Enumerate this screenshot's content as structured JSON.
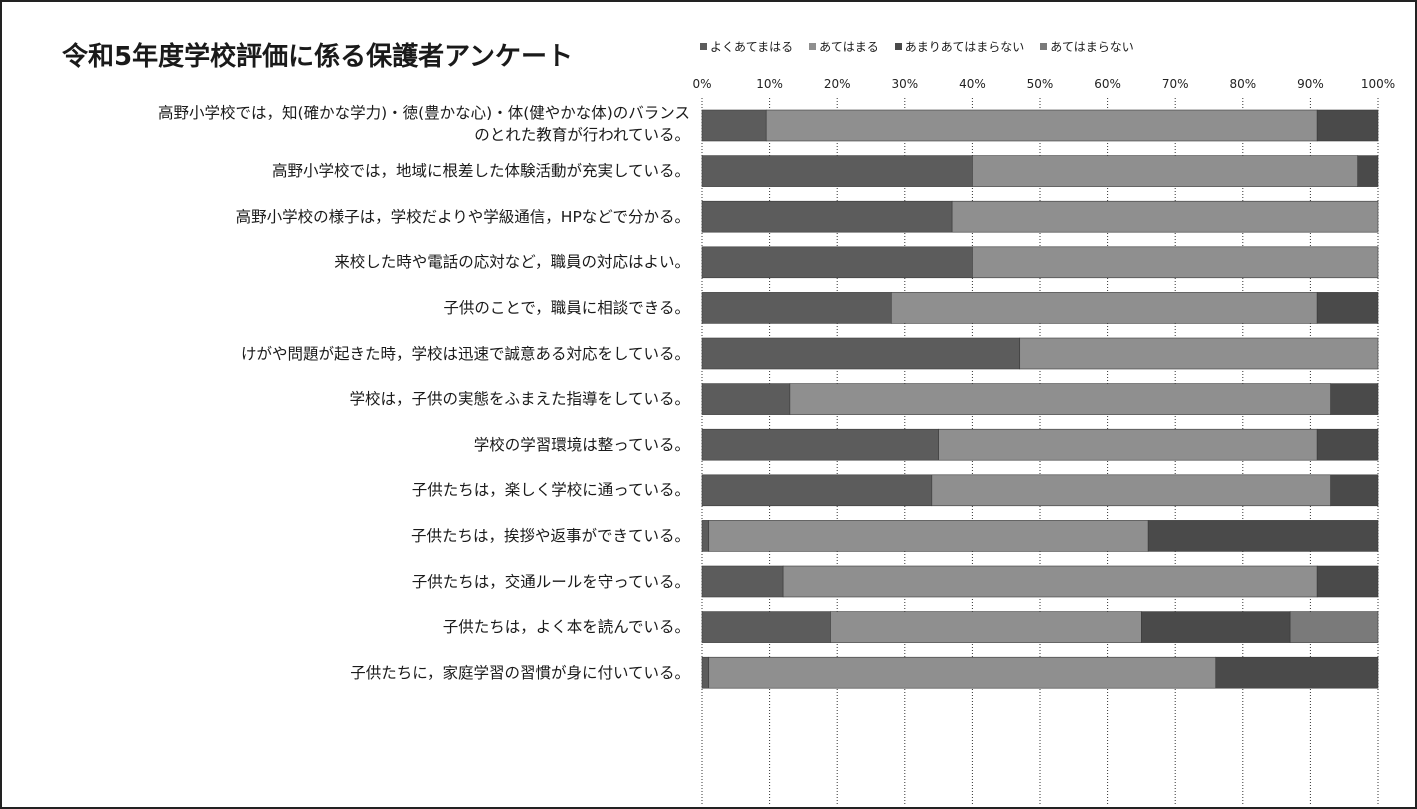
{
  "chart_data": {
    "type": "bar",
    "orientation": "horizontal",
    "stacked": true,
    "title": "令和5年度学校評価に係る保護者アンケート",
    "categories": [
      "高野小学校では，知(確かな学力)・徳(豊かな心)・体(健やかな体)のバランス\nのとれた教育が行われている。",
      "高野小学校では，地域に根差した体験活動が充実している。",
      "高野小学校の様子は，学校だよりや学級通信，HPなどで分かる。",
      "来校した時や電話の応対など，職員の対応はよい。",
      "子供のことで，職員に相談できる。",
      "けがや問題が起きた時，学校は迅速で誠意ある対応をしている。",
      "学校は，子供の実態をふまえた指導をしている。",
      "学校の学習環境は整っている。",
      "子供たちは，楽しく学校に通っている。",
      "子供たちは，挨拶や返事ができている。",
      "子供たちは，交通ルールを守っている。",
      "子供たちは，よく本を読んでいる。",
      "子供たちに，家庭学習の習慣が身に付いている。"
    ],
    "series": [
      {
        "name": "よくあてまはる",
        "color": "#5c5c5c",
        "values": [
          9.5,
          40,
          37,
          40,
          28,
          47,
          13,
          35,
          34,
          1,
          12,
          19,
          1
        ]
      },
      {
        "name": "あてはまる",
        "color": "#8f8f8f",
        "values": [
          81.5,
          57,
          63,
          60,
          63,
          53,
          80,
          56,
          59,
          65,
          79,
          46,
          75
        ]
      },
      {
        "name": "あまりあてはまらない",
        "color": "#4a4a4a",
        "values": [
          9,
          3,
          0,
          0,
          9,
          0,
          7,
          9,
          7,
          34,
          9,
          22,
          24
        ]
      },
      {
        "name": "あてはまらない",
        "color": "#7a7a7a",
        "values": [
          0,
          0,
          0,
          0,
          0,
          0,
          0,
          0,
          0,
          0,
          0,
          13,
          0
        ]
      }
    ],
    "x_ticks": [
      "0%",
      "10%",
      "20%",
      "30%",
      "40%",
      "50%",
      "60%",
      "70%",
      "80%",
      "90%",
      "100%"
    ],
    "xlim": [
      0,
      100
    ],
    "legend_position": "top",
    "grid": true
  }
}
